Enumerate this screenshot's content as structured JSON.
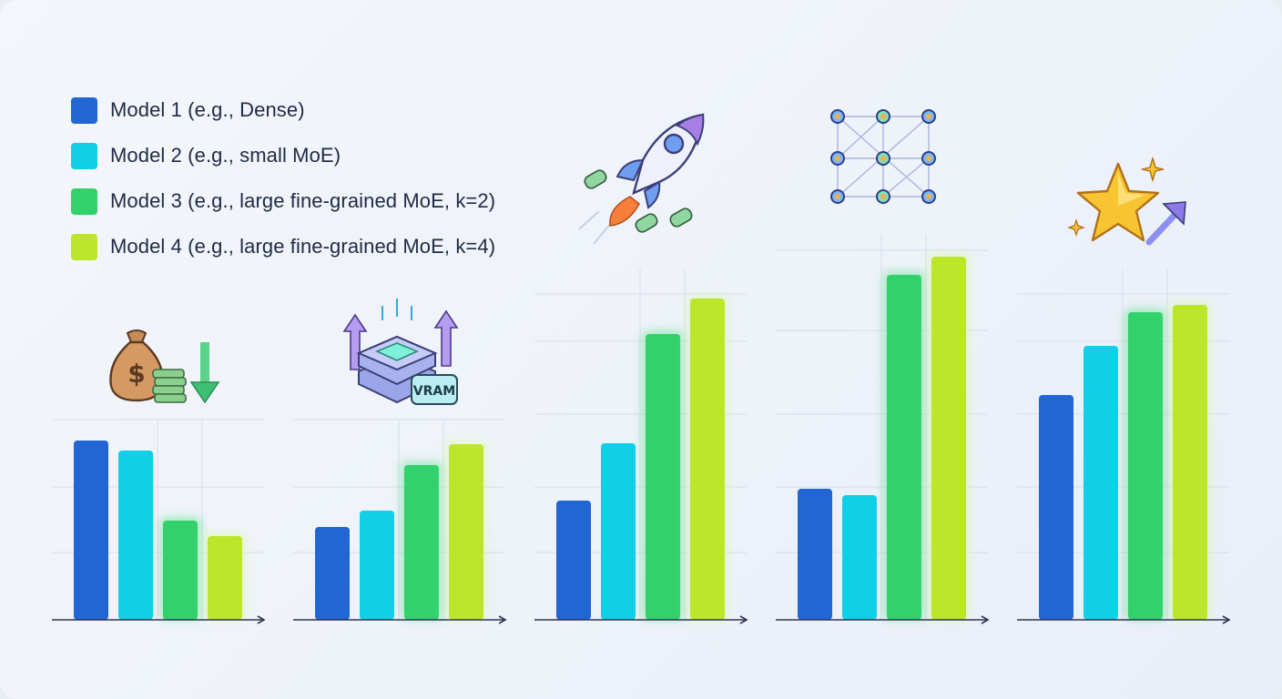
{
  "legend": [
    {
      "label": "Model 1 (e.g., Dense)",
      "color": "#2266d4"
    },
    {
      "label": "Model 2 (e.g., small MoE)",
      "color": "#0fd0e6"
    },
    {
      "label": "Model 3 (e.g., large fine-grained MoE, k=2)",
      "color": "#33d16c"
    },
    {
      "label": "Model 4 (e.g., large fine-grained MoE, k=4)",
      "color": "#bde62a"
    }
  ],
  "icons": {
    "panel1": "money-bag-down-arrow-icon",
    "panel2": "vram-server-icon",
    "panel3": "rocket-icon",
    "panel4": "neural-network-icon",
    "panel5": "star-up-arrow-icon"
  },
  "icon_text": {
    "vram": "VRAM"
  },
  "chart_data": [
    {
      "type": "bar",
      "series": [
        {
          "name": "Model 1 (e.g., Dense)",
          "values": [
            197
          ]
        },
        {
          "name": "Model 2 (e.g., small MoE)",
          "values": [
            186
          ]
        },
        {
          "name": "Model 3 (e.g., large fine-grained MoE, k=2)",
          "values": [
            109
          ]
        },
        {
          "name": "Model 4 (e.g., large fine-grained MoE, k=4)",
          "values": [
            92
          ]
        }
      ],
      "grid": true
    },
    {
      "type": "bar",
      "series": [
        {
          "name": "Model 1 (e.g., Dense)",
          "values": [
            102
          ]
        },
        {
          "name": "Model 2 (e.g., small MoE)",
          "values": [
            120
          ]
        },
        {
          "name": "Model 3 (e.g., large fine-grained MoE, k=2)",
          "values": [
            170
          ]
        },
        {
          "name": "Model 4 (e.g., large fine-grained MoE, k=4)",
          "values": [
            193
          ]
        }
      ],
      "grid": true
    },
    {
      "type": "bar",
      "series": [
        {
          "name": "Model 1 (e.g., Dense)",
          "values": [
            131
          ]
        },
        {
          "name": "Model 2 (e.g., small MoE)",
          "values": [
            194
          ]
        },
        {
          "name": "Model 3 (e.g., large fine-grained MoE, k=2)",
          "values": [
            314
          ]
        },
        {
          "name": "Model 4 (e.g., large fine-grained MoE, k=4)",
          "values": [
            353
          ]
        }
      ],
      "grid": true
    },
    {
      "type": "bar",
      "series": [
        {
          "name": "Model 1 (e.g., Dense)",
          "values": [
            144
          ]
        },
        {
          "name": "Model 2 (e.g., small MoE)",
          "values": [
            137
          ]
        },
        {
          "name": "Model 3 (e.g., large fine-grained MoE, k=2)",
          "values": [
            379
          ]
        },
        {
          "name": "Model 4 (e.g., large fine-grained MoE, k=4)",
          "values": [
            399
          ]
        }
      ],
      "grid": true
    },
    {
      "type": "bar",
      "series": [
        {
          "name": "Model 1 (e.g., Dense)",
          "values": [
            247
          ]
        },
        {
          "name": "Model 2 (e.g., small MoE)",
          "values": [
            301
          ]
        },
        {
          "name": "Model 3 (e.g., large fine-grained MoE, k=2)",
          "values": [
            338
          ]
        },
        {
          "name": "Model 4 (e.g., large fine-grained MoE, k=4)",
          "values": [
            346
          ]
        }
      ],
      "grid": true
    }
  ]
}
